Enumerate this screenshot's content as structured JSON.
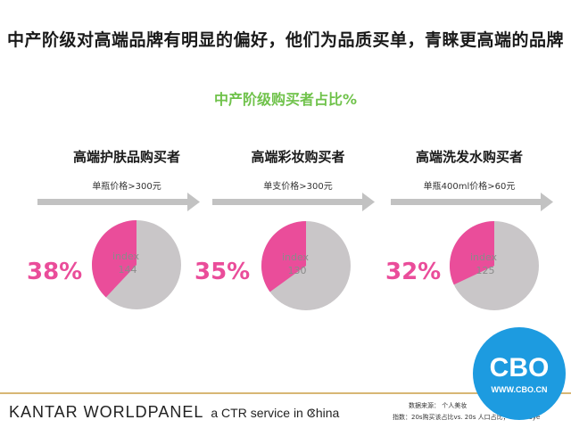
{
  "headline": "中产阶级对高端品牌有明显的偏好，他们为品质买单，青睐更高端的品牌",
  "subhead": "中产阶级购买者占比%",
  "colors": {
    "pink": "#ea4d9a",
    "grey": "#c9c6c8",
    "green": "#6fc24a",
    "arrow": "#c2c2c2"
  },
  "chart_data": [
    {
      "type": "pie",
      "title": "高端护肤品购买者",
      "subtitle": "单瓶价格>300元",
      "values": [
        38,
        62
      ],
      "label": "38%",
      "index_label": "index",
      "index_value": "144"
    },
    {
      "type": "pie",
      "title": "高端彩妆购买者",
      "subtitle": "单支价格>300元",
      "values": [
        35,
        65
      ],
      "label": "35%",
      "index_label": "index",
      "index_value": "130"
    },
    {
      "type": "pie",
      "title": "高端洗发水购买者",
      "subtitle": "单瓶400ml价格>60元",
      "values": [
        32,
        68
      ],
      "label": "32%",
      "index_label": "index",
      "index_value": "125"
    }
  ],
  "footer": {
    "brand": "KANTAR WORLDPANEL",
    "tagline": "a CTR service in China",
    "close": "x",
    "source_note": "数据来源：  个人美妆",
    "index_note": "指数：20s购买该占比vs. 20s 人口占比；  20s Buye"
  },
  "watermark": {
    "name": "CBO",
    "url": "WWW.CBO.CN"
  }
}
